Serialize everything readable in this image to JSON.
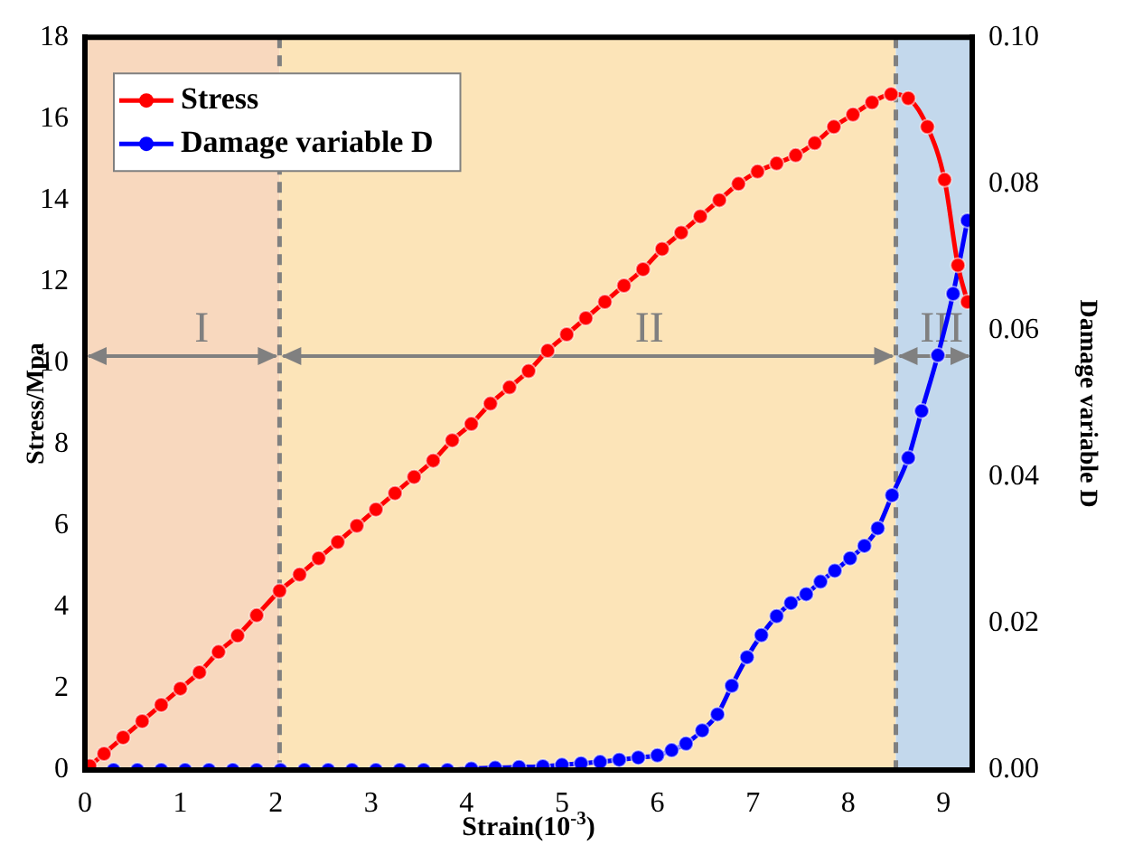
{
  "chart_data": {
    "type": "line",
    "xlabel": "Strain(10$^{-3}$)",
    "ylabel": "Stress/Mpa",
    "y2label": "Damage variable D",
    "xlim": [
      0,
      9.3
    ],
    "xticks": [
      0,
      1,
      2,
      3,
      4,
      5,
      6,
      7,
      8,
      9
    ],
    "ylim": [
      0,
      18
    ],
    "yticks": [
      0,
      2,
      4,
      6,
      8,
      10,
      12,
      14,
      16,
      18
    ],
    "y2lim": [
      0,
      0.1
    ],
    "y2ticks": [
      {
        "value": 0,
        "label": "0.00"
      },
      {
        "value": 0.02,
        "label": "0.02"
      },
      {
        "value": 0.04,
        "label": "0.04"
      },
      {
        "value": 0.06,
        "label": "0.06"
      },
      {
        "value": 0.08,
        "label": "0.08"
      },
      {
        "value": 0.1,
        "label": "0.10"
      }
    ],
    "series": [
      {
        "name": "Stress",
        "color": "#ff0000",
        "x": [
          0.05,
          0.2,
          0.4,
          0.6,
          0.8,
          1.0,
          1.2,
          1.4,
          1.6,
          1.8,
          2.04,
          2.25,
          2.45,
          2.65,
          2.85,
          3.05,
          3.25,
          3.45,
          3.65,
          3.85,
          4.05,
          4.25,
          4.45,
          4.65,
          4.85,
          5.05,
          5.25,
          5.45,
          5.65,
          5.85,
          6.05,
          6.25,
          6.45,
          6.65,
          6.85,
          7.05,
          7.25,
          7.45,
          7.65,
          7.85,
          8.05,
          8.25,
          8.45,
          8.63,
          8.83,
          9.01,
          9.15,
          9.25
        ],
        "values": [
          0.1,
          0.4,
          0.8,
          1.2,
          1.6,
          2.0,
          2.4,
          2.9,
          3.3,
          3.8,
          4.4,
          4.8,
          5.2,
          5.6,
          6.0,
          6.4,
          6.8,
          7.2,
          7.6,
          8.1,
          8.5,
          9.0,
          9.4,
          9.8,
          10.3,
          10.7,
          11.1,
          11.5,
          11.9,
          12.3,
          12.8,
          13.2,
          13.6,
          14.0,
          14.4,
          14.7,
          14.9,
          15.1,
          15.4,
          15.8,
          16.1,
          16.4,
          16.6,
          16.5,
          15.8,
          14.5,
          12.4,
          11.5
        ]
      },
      {
        "name": "Damage variable D",
        "color": "#0000ff",
        "axis": "y2",
        "x": [
          0.05,
          0.3,
          0.55,
          0.8,
          1.05,
          1.3,
          1.55,
          1.8,
          2.05,
          2.3,
          2.55,
          2.8,
          3.05,
          3.3,
          3.55,
          3.8,
          4.05,
          4.3,
          4.55,
          4.8,
          5.0,
          5.2,
          5.4,
          5.6,
          5.8,
          6.0,
          6.15,
          6.3,
          6.47,
          6.63,
          6.78,
          6.94,
          7.09,
          7.25,
          7.4,
          7.56,
          7.71,
          7.86,
          8.02,
          8.17,
          8.31,
          8.46,
          8.63,
          8.77,
          8.94,
          9.1,
          9.25
        ],
        "values": [
          0,
          0,
          0,
          0,
          0,
          0,
          0,
          0,
          0,
          0,
          0,
          0,
          0,
          0,
          0,
          0,
          0.0002,
          0.0003,
          0.0004,
          0.0005,
          0.0007,
          0.0009,
          0.0011,
          0.0014,
          0.0017,
          0.002,
          0.0027,
          0.0036,
          0.0054,
          0.0076,
          0.0115,
          0.0154,
          0.0184,
          0.021,
          0.0228,
          0.024,
          0.0257,
          0.0272,
          0.0289,
          0.0306,
          0.033,
          0.0375,
          0.0426,
          0.049,
          0.0566,
          0.065,
          0.075
        ]
      }
    ],
    "bands": [
      {
        "axis": "x",
        "from": 0,
        "to": 2.04,
        "label": "I",
        "color": "#f8d8be"
      },
      {
        "axis": "x",
        "from": 2.04,
        "to": 8.5,
        "label": "II",
        "color": "#fce4b8"
      },
      {
        "axis": "x",
        "from": 8.5,
        "to": 9.3,
        "label": "III",
        "color": "#c3d8ec"
      }
    ],
    "ref_lines": [
      {
        "axis": "x",
        "value": 2.04,
        "color": "#808080",
        "line_style": "dashed"
      },
      {
        "axis": "x",
        "value": 8.5,
        "color": "#808080",
        "line_style": "dashed"
      }
    ],
    "legend": "top left",
    "marker": "circle",
    "grid": false
  }
}
